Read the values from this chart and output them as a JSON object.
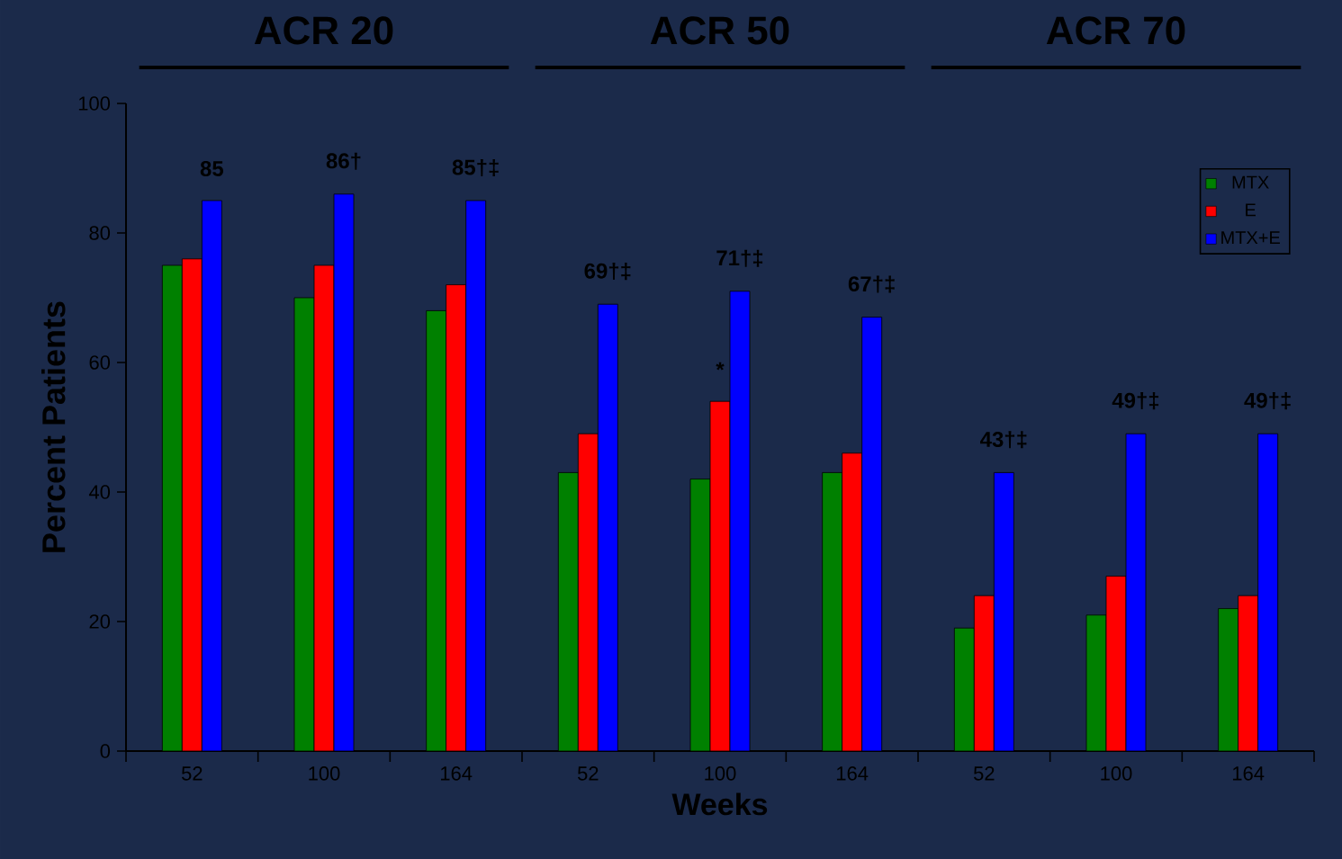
{
  "chart_data": {
    "type": "bar",
    "categories": [
      "52",
      "100",
      "164",
      "52",
      "100",
      "164",
      "52",
      "100",
      "164"
    ],
    "series": [
      {
        "name": "MTX",
        "color": "#008000",
        "values": [
          75,
          70,
          68,
          43,
          42,
          43,
          19,
          21,
          22
        ]
      },
      {
        "name": "E",
        "color": "#ff0000",
        "values": [
          76,
          75,
          72,
          49,
          54,
          46,
          24,
          27,
          24
        ],
        "value_labels": [
          null,
          null,
          null,
          null,
          "*",
          null,
          null,
          null,
          null
        ]
      },
      {
        "name": "MTX+E",
        "color": "#0000ff",
        "values": [
          85,
          86,
          85,
          69,
          71,
          67,
          43,
          49,
          49
        ],
        "value_labels": [
          "85",
          "86†",
          "85†‡",
          "69†‡",
          "71†‡",
          "67†‡",
          "43†‡",
          "49†‡",
          "49†‡"
        ]
      }
    ],
    "xlabel": "Weeks",
    "ylabel": "Percent Patients",
    "ylim": [
      0,
      100
    ],
    "yticks": [
      0,
      20,
      40,
      60,
      80,
      100
    ],
    "annotations": [
      "ACR 20",
      "ACR 50",
      "ACR 70"
    ],
    "legend": "top right",
    "grid": false
  }
}
